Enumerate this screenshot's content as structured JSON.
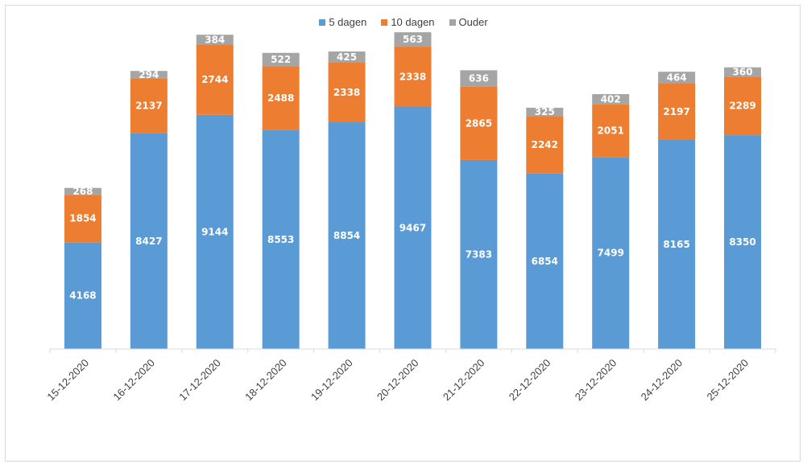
{
  "chart_data": {
    "type": "bar",
    "stacked": true,
    "categories": [
      "15-12-2020",
      "16-12-2020",
      "17-12-2020",
      "18-12-2020",
      "19-12-2020",
      "20-12-2020",
      "21-12-2020",
      "22-12-2020",
      "23-12-2020",
      "24-12-2020",
      "25-12-2020"
    ],
    "series": [
      {
        "name": "5 dagen",
        "color": "#5b9bd5",
        "values": [
          4168,
          8427,
          9144,
          8553,
          8854,
          9467,
          7383,
          6854,
          7499,
          8165,
          8350
        ]
      },
      {
        "name": "10 dagen",
        "color": "#ed7d31",
        "values": [
          1854,
          2137,
          2744,
          2488,
          2338,
          2338,
          2865,
          2242,
          2051,
          2197,
          2289
        ]
      },
      {
        "name": "Ouder",
        "color": "#a5a5a5",
        "values": [
          268,
          294,
          384,
          522,
          425,
          563,
          636,
          325,
          402,
          464,
          360
        ]
      }
    ],
    "ylim": [
      0,
      13000
    ],
    "grid": false,
    "legend_position": "top"
  }
}
